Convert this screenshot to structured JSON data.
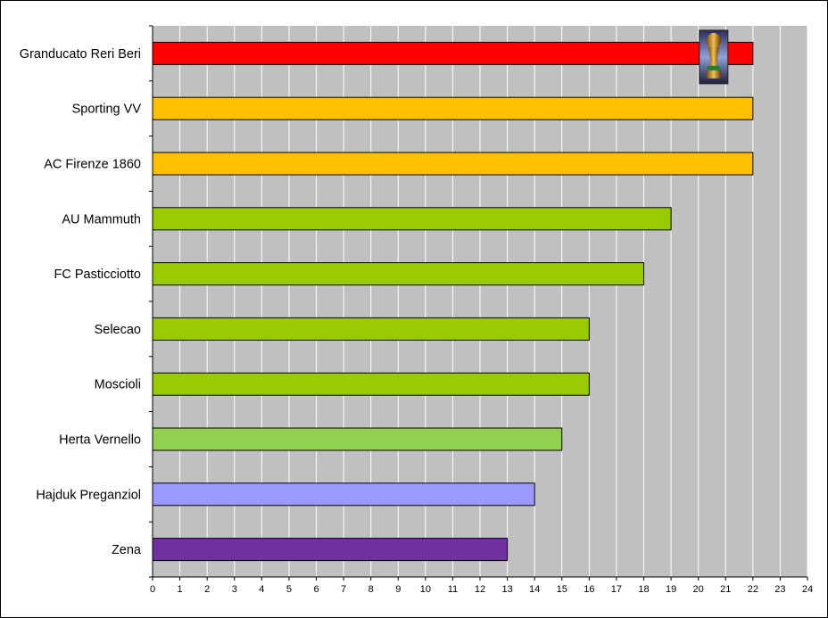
{
  "chart_data": {
    "type": "bar",
    "orientation": "horizontal",
    "categories": [
      "Granducato Reri Beri",
      "Sporting VV",
      "AC Firenze 1860",
      "AU Mammuth",
      "FC Pasticciotto",
      "Selecao",
      "Moscioli",
      "Herta Vernello",
      "Hajduk Preganziol",
      "Zena"
    ],
    "values": [
      22,
      22,
      22,
      19,
      18,
      16,
      16,
      15,
      14,
      13
    ],
    "bar_colors": [
      "#ff0000",
      "#ffc000",
      "#ffc000",
      "#99cc00",
      "#99cc00",
      "#99cc00",
      "#99cc00",
      "#92d050",
      "#9999ff",
      "#7030a0"
    ],
    "title": "",
    "xlabel": "",
    "ylabel": "",
    "xlim": [
      0,
      24
    ],
    "x_ticks": [
      "0",
      "1",
      "2",
      "3",
      "4",
      "5",
      "6",
      "7",
      "8",
      "9",
      "10",
      "11",
      "12",
      "13",
      "14",
      "15",
      "16",
      "17",
      "18",
      "19",
      "20",
      "21",
      "22",
      "23",
      "24"
    ],
    "grid": "vertical",
    "plot_background": "#c0c0c0",
    "grid_color": "#ffffff",
    "legend": "none",
    "annotation_icon": "trophy-icon",
    "annotation_category": "Granducato Reri Beri"
  }
}
